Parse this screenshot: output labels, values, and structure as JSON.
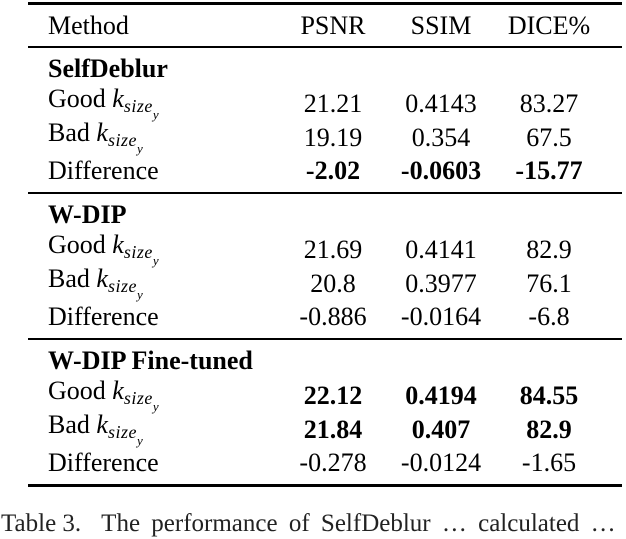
{
  "header": {
    "method": "Method",
    "psnr": "PSNR",
    "ssim": "SSIM",
    "dice": "DICE%"
  },
  "math": {
    "base": "k",
    "sub": "size",
    "subsub": "y"
  },
  "sections": [
    {
      "name": "SelfDeblur",
      "rows": [
        {
          "label": "Good",
          "psnr": "21.21",
          "ssim": "0.4143",
          "dice": "83.27"
        },
        {
          "label": "Bad",
          "psnr": "19.19",
          "ssim": "0.354",
          "dice": "67.5"
        },
        {
          "label": "Difference",
          "psnr": "-2.02",
          "ssim": "-0.0603",
          "dice": "-15.77"
        }
      ]
    },
    {
      "name": "W-DIP",
      "rows": [
        {
          "label": "Good",
          "psnr": "21.69",
          "ssim": "0.4141",
          "dice": "82.9"
        },
        {
          "label": "Bad",
          "psnr": "20.8",
          "ssim": "0.3977",
          "dice": "76.1"
        },
        {
          "label": "Difference",
          "psnr": "-0.886",
          "ssim": "-0.0164",
          "dice": "-6.8"
        }
      ]
    },
    {
      "name": "W-DIP Fine-tuned",
      "rows": [
        {
          "label": "Good",
          "psnr": "22.12",
          "ssim": "0.4194",
          "dice": "84.55"
        },
        {
          "label": "Bad",
          "psnr": "21.84",
          "ssim": "0.407",
          "dice": "82.9"
        },
        {
          "label": "Difference",
          "psnr": "-0.278",
          "ssim": "-0.0124",
          "dice": "-1.65"
        }
      ]
    }
  ],
  "caption": {
    "label": "Table 3.",
    "text": "The performance of SelfDeblur … calculated …"
  }
}
